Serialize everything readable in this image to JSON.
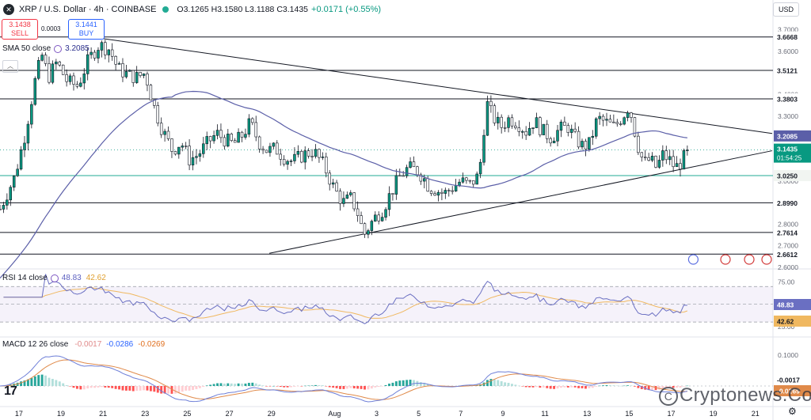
{
  "header": {
    "symbol": "XRP / U.S. Dollar · 4h · COINBASE",
    "ohlc": "O3.1265 H3.1580 L3.1188 C3.1435",
    "change": "+0.0171 (+0.55%)",
    "sell_price": "3.1438",
    "sell_label": "SELL",
    "buy_price": "3.1441",
    "buy_label": "BUY",
    "spread": "0.0003",
    "currency": "USD"
  },
  "watermark": "Cryptonews.Com",
  "colors": {
    "up": "#089981",
    "down": "#f23645",
    "sma": "#5b5fa8",
    "support_line": "#22ab94",
    "rsi": "#6a6fc2",
    "rsi_ma": "#f0b860",
    "macd": "#6e7fd8",
    "signal": "#e08a4a"
  },
  "chart_data": [
    {
      "type": "candlestick",
      "title": "XRP / U.S. Dollar · 4h · COINBASE",
      "y_axis_side": "right",
      "ylim": [
        2.6,
        3.75
      ],
      "y_ticks": [
        2.6,
        2.7,
        2.8,
        2.9,
        3.0,
        3.1,
        3.2,
        3.3,
        3.4,
        3.5,
        3.6,
        3.7
      ],
      "x_tick_labels": [
        "17",
        "19",
        "21",
        "23",
        "25",
        "27",
        "29",
        "Aug",
        "3",
        "5",
        "7",
        "9",
        "11",
        "13",
        "15",
        "17",
        "19",
        "21"
      ],
      "x_range_days": [
        16.1,
        52.8
      ],
      "sma": {
        "name": "SMA 50 close",
        "value": 3.2085
      },
      "last_price": {
        "value": 3.1435,
        "countdown": "01:54:25"
      },
      "horizontal_levels": [
        3.6668,
        3.5121,
        3.3803,
        3.025,
        2.899,
        2.7614,
        2.6612
      ],
      "support_level": 3.025,
      "trendlines": [
        {
          "name": "descending",
          "from": [
            19.5,
            3.68
          ],
          "to": [
            52.8,
            3.22
          ]
        },
        {
          "name": "ascending",
          "from": [
            28.9,
            2.665
          ],
          "to": [
            52.8,
            3.14
          ]
        }
      ],
      "close_path": [
        [
          16.1,
          2.87
        ],
        [
          16.8,
          3.02
        ],
        [
          17.3,
          3.22
        ],
        [
          17.8,
          3.48
        ],
        [
          18.1,
          3.58
        ],
        [
          18.4,
          3.48
        ],
        [
          18.8,
          3.55
        ],
        [
          19.3,
          3.46
        ],
        [
          19.8,
          3.44
        ],
        [
          20.3,
          3.56
        ],
        [
          20.8,
          3.63
        ],
        [
          21.3,
          3.61
        ],
        [
          21.7,
          3.52
        ],
        [
          22.2,
          3.49
        ],
        [
          22.6,
          3.48
        ],
        [
          23.0,
          3.5
        ],
        [
          23.4,
          3.35
        ],
        [
          23.8,
          3.24
        ],
        [
          24.3,
          3.14
        ],
        [
          24.7,
          3.18
        ],
        [
          25.1,
          3.1
        ],
        [
          25.5,
          3.12
        ],
        [
          26.0,
          3.18
        ],
        [
          26.4,
          3.22
        ],
        [
          26.8,
          3.19
        ],
        [
          27.2,
          3.17
        ],
        [
          27.6,
          3.21
        ],
        [
          28.0,
          3.27
        ],
        [
          28.4,
          3.18
        ],
        [
          28.8,
          3.14
        ],
        [
          29.2,
          3.15
        ],
        [
          29.6,
          3.11
        ],
        [
          30.0,
          3.09
        ],
        [
          30.5,
          3.12
        ],
        [
          31.0,
          3.14
        ],
        [
          31.5,
          3.07
        ],
        [
          32.0,
          2.96
        ],
        [
          32.4,
          2.9
        ],
        [
          32.8,
          2.92
        ],
        [
          33.1,
          2.85
        ],
        [
          33.4,
          2.75
        ],
        [
          33.7,
          2.8
        ],
        [
          34.0,
          2.84
        ],
        [
          34.3,
          2.87
        ],
        [
          34.7,
          2.95
        ],
        [
          35.1,
          3.02
        ],
        [
          35.5,
          3.06
        ],
        [
          35.9,
          3.05
        ],
        [
          36.2,
          3.02
        ],
        [
          36.5,
          2.97
        ],
        [
          36.8,
          2.96
        ],
        [
          37.2,
          2.94
        ],
        [
          37.6,
          2.97
        ],
        [
          38.0,
          3.0
        ],
        [
          38.4,
          2.98
        ],
        [
          38.8,
          3.02
        ],
        [
          39.0,
          3.12
        ],
        [
          39.2,
          3.37
        ],
        [
          39.5,
          3.3
        ],
        [
          39.9,
          3.25
        ],
        [
          40.3,
          3.29
        ],
        [
          40.7,
          3.27
        ],
        [
          41.1,
          3.23
        ],
        [
          41.5,
          3.28
        ],
        [
          41.9,
          3.23
        ],
        [
          42.3,
          3.2
        ],
        [
          42.7,
          3.24
        ],
        [
          43.1,
          3.25
        ],
        [
          43.4,
          3.2
        ],
        [
          43.8,
          3.16
        ],
        [
          44.1,
          3.17
        ],
        [
          44.5,
          3.29
        ],
        [
          44.9,
          3.27
        ],
        [
          45.3,
          3.25
        ],
        [
          45.7,
          3.3
        ],
        [
          46.0,
          3.35
        ],
        [
          46.4,
          3.17
        ],
        [
          46.7,
          3.08
        ],
        [
          47.0,
          3.1
        ],
        [
          47.3,
          3.06
        ],
        [
          47.6,
          3.12
        ],
        [
          47.9,
          3.1
        ],
        [
          48.2,
          3.06
        ],
        [
          48.5,
          3.09
        ],
        [
          48.8,
          3.14
        ]
      ]
    },
    {
      "type": "line",
      "title": "RSI 14 close",
      "ylim": [
        15,
        88
      ],
      "y_ticks": [
        25.0,
        75.0
      ],
      "band": [
        30,
        70
      ],
      "series": [
        {
          "name": "RSI",
          "value": 48.83
        },
        {
          "name": "RSI-based MA",
          "value": 42.62
        }
      ]
    },
    {
      "type": "bar",
      "title": "MACD 12 26 close",
      "y_ticks": [
        0.1
      ],
      "series": [
        {
          "name": "Histogram",
          "value": -0.0017
        },
        {
          "name": "MACD",
          "value": -0.0286
        },
        {
          "name": "Signal",
          "value": -0.0269
        }
      ]
    }
  ],
  "labels": {
    "sma_title": "SMA 50 close",
    "sma_value": "3.2085",
    "rsi_title": "RSI 14 close",
    "rsi_value": "48.83",
    "rsi_ma_value": "42.62",
    "macd_title": "MACD 12 26 close",
    "macd_hist": "-0.0017",
    "macd_value": "-0.0286",
    "signal_value": "-0.0269"
  },
  "axis_badges": {
    "levels": [
      "3.6668",
      "3.5121",
      "3.3803",
      "3.2085",
      "3.1435",
      "3.0250",
      "2.8990",
      "2.7614",
      "2.6612"
    ],
    "countdown": "01:54:25",
    "rsi": [
      "48.83",
      "42.62"
    ],
    "rsi_ticks": [
      "75.00",
      "25.00"
    ],
    "macd": [
      "-0.0017",
      "-0.0269"
    ],
    "macd_ticks": [
      "0.1000"
    ]
  }
}
